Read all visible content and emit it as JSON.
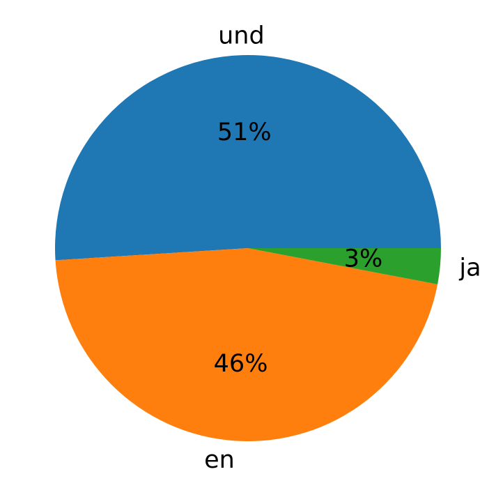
{
  "chart_data": {
    "type": "pie",
    "title": "",
    "slices": [
      {
        "label": "und",
        "value": 51,
        "value_label": "51%",
        "color": "#1f77b4"
      },
      {
        "label": "en",
        "value": 46,
        "value_label": "46%",
        "color": "#ff7f0e"
      },
      {
        "label": "ja",
        "value": 3,
        "value_label": "3%",
        "color": "#2ca02c"
      }
    ],
    "start_angle_deg": 0,
    "direction": "counterclockwise",
    "legend": "none"
  }
}
